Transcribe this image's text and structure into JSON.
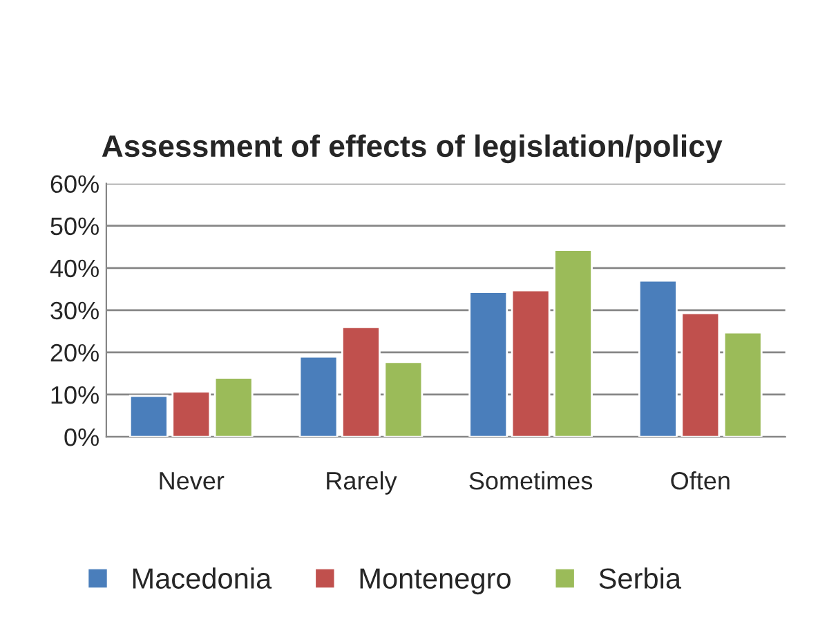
{
  "chart_data": {
    "type": "bar",
    "title": "Assessment of effects of legislation/policy",
    "categories": [
      "Never",
      "Rarely",
      "Sometimes",
      "Often"
    ],
    "series": [
      {
        "name": "Macedonia",
        "color": "#4a7ebb",
        "values": [
          9.7,
          19,
          34.3,
          37
        ]
      },
      {
        "name": "Montenegro",
        "color": "#c0504d",
        "values": [
          10.7,
          26,
          34.7,
          29.3
        ]
      },
      {
        "name": "Serbia",
        "color": "#9bbb59",
        "values": [
          14,
          17.7,
          44.3,
          24.7
        ]
      }
    ],
    "ylim": [
      0,
      60
    ],
    "yticks": [
      {
        "value": 0,
        "label": "0%"
      },
      {
        "value": 10,
        "label": "10%"
      },
      {
        "value": 20,
        "label": "20%"
      },
      {
        "value": 30,
        "label": "30%"
      },
      {
        "value": 40,
        "label": "40%"
      },
      {
        "value": 50,
        "label": "50%"
      },
      {
        "value": 60,
        "label": "60%"
      }
    ],
    "grid": "y",
    "legend": "bottom"
  }
}
